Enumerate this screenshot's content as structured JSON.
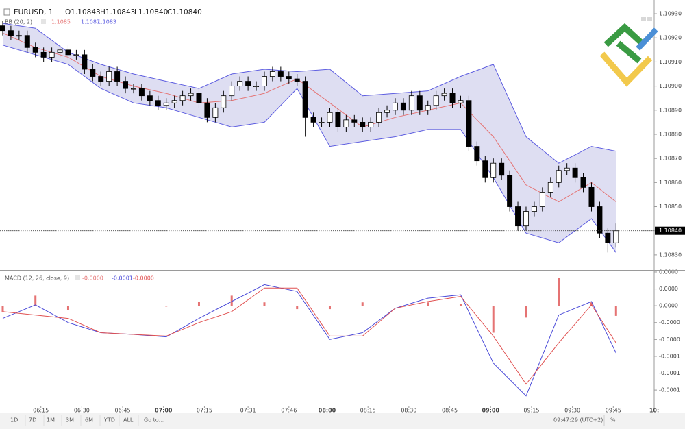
{
  "chart_data": [
    {
      "type": "candlestick",
      "title": "EURUSD, 1",
      "ohlc_labels": [
        "O1.10843",
        "H1.10843",
        "L1.10840",
        "C1.10840"
      ],
      "up_color": "#ffffff",
      "down_color": "#000000",
      "wick_color": "#000000",
      "x": [
        361,
        364,
        367,
        370,
        373,
        376,
        379,
        382,
        385,
        388,
        391,
        394,
        397,
        400,
        403,
        406,
        409,
        412,
        415,
        418,
        421,
        424,
        427,
        430,
        433,
        436,
        439,
        442,
        445,
        448,
        451,
        454,
        457,
        460,
        463,
        466,
        469,
        472,
        475,
        478,
        481,
        484,
        487,
        490,
        493,
        496,
        499,
        502,
        505,
        508,
        511,
        514,
        517,
        520,
        523,
        526,
        529,
        532,
        535,
        538,
        541,
        544,
        547,
        550,
        553,
        556,
        559,
        562,
        565,
        568,
        571,
        574,
        577,
        580,
        583,
        586
      ],
      "ohlc": [
        [
          1.10925,
          1.10927,
          1.10921,
          1.10923
        ],
        [
          1.10923,
          1.10925,
          1.10919,
          1.10921
        ],
        [
          1.10921,
          1.10923,
          1.10919,
          1.10921
        ],
        [
          1.10921,
          1.10923,
          1.10914,
          1.10916
        ],
        [
          1.10916,
          1.10918,
          1.10912,
          1.10914
        ],
        [
          1.10914,
          1.10916,
          1.1091,
          1.10912
        ],
        [
          1.10912,
          1.10916,
          1.1091,
          1.10914
        ],
        [
          1.10914,
          1.10917,
          1.10912,
          1.10915
        ],
        [
          1.10915,
          1.10917,
          1.10911,
          1.10913
        ],
        [
          1.10913,
          1.10915,
          1.10911,
          1.10913
        ],
        [
          1.10913,
          1.10915,
          1.10905,
          1.10907
        ],
        [
          1.10907,
          1.10909,
          1.10902,
          1.10904
        ],
        [
          1.10904,
          1.10906,
          1.109,
          1.10902
        ],
        [
          1.10902,
          1.10908,
          1.109,
          1.10906
        ],
        [
          1.10906,
          1.10908,
          1.109,
          1.10902
        ],
        [
          1.10902,
          1.10904,
          1.10897,
          1.10899
        ],
        [
          1.10899,
          1.10901,
          1.10897,
          1.10899
        ],
        [
          1.10899,
          1.10901,
          1.10894,
          1.10896
        ],
        [
          1.10896,
          1.10898,
          1.10892,
          1.10894
        ],
        [
          1.10894,
          1.10896,
          1.1089,
          1.10892
        ],
        [
          1.10892,
          1.10895,
          1.1089,
          1.10893
        ],
        [
          1.10893,
          1.10896,
          1.10891,
          1.10894
        ],
        [
          1.10894,
          1.10898,
          1.10892,
          1.10896
        ],
        [
          1.10896,
          1.10899,
          1.10894,
          1.10897
        ],
        [
          1.10897,
          1.10899,
          1.10891,
          1.10893
        ],
        [
          1.10893,
          1.10895,
          1.10885,
          1.10887
        ],
        [
          1.10887,
          1.10893,
          1.10885,
          1.10891
        ],
        [
          1.10891,
          1.10898,
          1.10889,
          1.10896
        ],
        [
          1.10896,
          1.10902,
          1.10894,
          1.109
        ],
        [
          1.109,
          1.10904,
          1.10898,
          1.10902
        ],
        [
          1.10902,
          1.10904,
          1.10898,
          1.109
        ],
        [
          1.109,
          1.10902,
          1.10898,
          1.109
        ],
        [
          1.109,
          1.10906,
          1.10898,
          1.10904
        ],
        [
          1.10904,
          1.10908,
          1.10902,
          1.10906
        ],
        [
          1.10906,
          1.10908,
          1.10902,
          1.10904
        ],
        [
          1.10904,
          1.10906,
          1.10901,
          1.10903
        ],
        [
          1.10903,
          1.10905,
          1.109,
          1.10902
        ],
        [
          1.10902,
          1.10904,
          1.10879,
          1.10887
        ],
        [
          1.10887,
          1.10889,
          1.10883,
          1.10885
        ],
        [
          1.10885,
          1.10887,
          1.10883,
          1.10885
        ],
        [
          1.10885,
          1.10891,
          1.10883,
          1.10889
        ],
        [
          1.10889,
          1.10891,
          1.10881,
          1.10883
        ],
        [
          1.10883,
          1.10888,
          1.10881,
          1.10886
        ],
        [
          1.10886,
          1.10888,
          1.10883,
          1.10885
        ],
        [
          1.10885,
          1.10887,
          1.10881,
          1.10883
        ],
        [
          1.10883,
          1.10887,
          1.10881,
          1.10885
        ],
        [
          1.10885,
          1.10891,
          1.10883,
          1.10889
        ],
        [
          1.10889,
          1.10892,
          1.10887,
          1.1089
        ],
        [
          1.1089,
          1.10895,
          1.10888,
          1.10893
        ],
        [
          1.10893,
          1.10895,
          1.10888,
          1.1089
        ],
        [
          1.1089,
          1.10898,
          1.10888,
          1.10896
        ],
        [
          1.10896,
          1.10898,
          1.10888,
          1.1089
        ],
        [
          1.1089,
          1.10894,
          1.10888,
          1.10892
        ],
        [
          1.10892,
          1.10898,
          1.1089,
          1.10896
        ],
        [
          1.10896,
          1.10899,
          1.10894,
          1.10897
        ],
        [
          1.10897,
          1.10899,
          1.10891,
          1.10893
        ],
        [
          1.10893,
          1.10896,
          1.10891,
          1.10894
        ],
        [
          1.10894,
          1.10896,
          1.10873,
          1.10875
        ],
        [
          1.10875,
          1.10877,
          1.10867,
          1.10869
        ],
        [
          1.10869,
          1.10871,
          1.1086,
          1.10862
        ],
        [
          1.10862,
          1.1087,
          1.1086,
          1.10868
        ],
        [
          1.10868,
          1.1087,
          1.10861,
          1.10863
        ],
        [
          1.10863,
          1.10865,
          1.10848,
          1.1085
        ],
        [
          1.1085,
          1.10852,
          1.1084,
          1.10842
        ],
        [
          1.10842,
          1.1085,
          1.1084,
          1.10848
        ],
        [
          1.10848,
          1.10852,
          1.10846,
          1.1085
        ],
        [
          1.1085,
          1.10858,
          1.10848,
          1.10856
        ],
        [
          1.10856,
          1.10862,
          1.10854,
          1.1086
        ],
        [
          1.1086,
          1.10867,
          1.10858,
          1.10865
        ],
        [
          1.10865,
          1.10868,
          1.10863,
          1.10866
        ],
        [
          1.10866,
          1.10868,
          1.1086,
          1.10862
        ],
        [
          1.10862,
          1.10864,
          1.10856,
          1.10858
        ],
        [
          1.10858,
          1.1086,
          1.10848,
          1.1085
        ],
        [
          1.1085,
          1.10852,
          1.10837,
          1.10839
        ],
        [
          1.10839,
          1.10841,
          1.10831,
          1.10835
        ],
        [
          1.10835,
          1.10843,
          1.10833,
          1.1084
        ]
      ],
      "xlim": [
        360,
        600
      ],
      "xticks": [
        {
          "value": 375,
          "label": "06:15"
        },
        {
          "value": 390,
          "label": "06:30"
        },
        {
          "value": 405,
          "label": "06:45"
        },
        {
          "value": 420,
          "label": "07:00"
        },
        {
          "value": 435,
          "label": "07:15"
        },
        {
          "value": 451,
          "label": "07:31"
        },
        {
          "value": 466,
          "label": "07:46"
        },
        {
          "value": 480,
          "label": "08:00"
        },
        {
          "value": 495,
          "label": "08:15"
        },
        {
          "value": 510,
          "label": "08:30"
        },
        {
          "value": 525,
          "label": "08:45"
        },
        {
          "value": 540,
          "label": "09:00"
        },
        {
          "value": 555,
          "label": "09:15"
        },
        {
          "value": 570,
          "label": "09:30"
        },
        {
          "value": 585,
          "label": "09:45"
        },
        {
          "value": 600,
          "label": "10:"
        }
      ],
      "ylim": [
        1.10824,
        1.109357
      ],
      "yticks": [
        {
          "value": 1.1093,
          "label": "1.10930"
        },
        {
          "value": 1.1092,
          "label": "1.10920"
        },
        {
          "value": 1.1091,
          "label": "1.10910"
        },
        {
          "value": 1.109,
          "label": "1.10900"
        },
        {
          "value": 1.1089,
          "label": "1.10890"
        },
        {
          "value": 1.1088,
          "label": "1.10880"
        },
        {
          "value": 1.1087,
          "label": "1.10870"
        },
        {
          "value": 1.1086,
          "label": "1.10860"
        },
        {
          "value": 1.1085,
          "label": "1.10850"
        },
        {
          "value": 1.1084,
          "label": "1.10840"
        },
        {
          "value": 1.1083,
          "label": "1.10830"
        }
      ],
      "last_price": {
        "value": 1.1084,
        "label": "1.10840"
      },
      "bollinger": {
        "name": "BB (20, 2)",
        "fill": "#dedef2",
        "x": [
          361,
          373,
          385,
          397,
          409,
          421,
          433,
          445,
          457,
          469,
          481,
          493,
          505,
          517,
          529,
          541,
          553,
          565,
          577,
          586
        ],
        "basis": {
          "label": "1.1085",
          "color": "#e57373",
          "values": [
            1.10922,
            1.10916,
            1.10912,
            1.10904,
            1.109,
            1.10897,
            1.10893,
            1.10894,
            1.10897,
            1.10903,
            1.10893,
            1.10883,
            1.10887,
            1.1089,
            1.10893,
            1.10879,
            1.10859,
            1.10852,
            1.1086,
            1.10852
          ]
        },
        "upper": {
          "label": "1.1087",
          "color": "#5c5ce0",
          "values": [
            1.10926,
            1.10924,
            1.10914,
            1.10909,
            1.10905,
            1.10902,
            1.10899,
            1.10905,
            1.10907,
            1.10906,
            1.10907,
            1.10896,
            1.10897,
            1.10898,
            1.10904,
            1.10909,
            1.10879,
            1.10868,
            1.10875,
            1.10873
          ]
        },
        "lower": {
          "label": "1.1083",
          "color": "#5c5ce0",
          "values": [
            1.10917,
            1.10913,
            1.10909,
            1.10899,
            1.10893,
            1.10891,
            1.10887,
            1.10883,
            1.10885,
            1.10899,
            1.10875,
            1.10877,
            1.10879,
            1.10882,
            1.10882,
            1.10862,
            1.10839,
            1.10835,
            1.10845,
            1.10831
          ]
        }
      }
    },
    {
      "type": "macd",
      "title": "MACD (12, 26, close, 9)",
      "x": [
        361,
        373,
        385,
        397,
        409,
        421,
        433,
        445,
        457,
        469,
        481,
        493,
        505,
        517,
        529,
        541,
        553,
        565,
        577,
        586
      ],
      "ylim": [
        -0.000117,
        4.08e-05
      ],
      "yticks": [
        {
          "value": 4e-05,
          "label": "0.0000"
        },
        {
          "value": 2e-05,
          "label": "0.0000"
        },
        {
          "value": 0,
          "label": "0.0000"
        },
        {
          "value": -2e-05,
          "label": "-0.0000"
        },
        {
          "value": -4e-05,
          "label": "-0.0000"
        },
        {
          "value": -6e-05,
          "label": "-0.0001"
        },
        {
          "value": -8e-05,
          "label": "-0.0001"
        },
        {
          "value": -0.0001,
          "label": "-0.0001"
        }
      ],
      "series": [
        {
          "label": "-0.0000",
          "color": "#e57373",
          "kind": "histogram",
          "values": [
            -8e-06,
            1.2e-05,
            -5e-06,
            0,
            0,
            -1e-06,
            5e-06,
            1.2e-05,
            4e-06,
            -4e-06,
            -4e-06,
            4e-06,
            0,
            4e-06,
            2e-06,
            -3.2e-05,
            -1.4e-05,
            3.3e-05,
            4e-06,
            -1.2e-05
          ]
        },
        {
          "label": "-0.0001",
          "color": "#4a4ad8",
          "kind": "line",
          "values": [
            -1.5e-05,
            1e-06,
            -2e-05,
            -3.2e-05,
            -3.4e-05,
            -3.7e-05,
            -1.5e-05,
            5e-06,
            2.5e-05,
            1.7e-05,
            -4e-05,
            -3.2e-05,
            -3e-06,
            9e-06,
            1.3e-05,
            -6.8e-05,
            -0.000107,
            -1.1e-05,
            5e-06,
            -5.6e-05
          ]
        },
        {
          "label": "-0.0000",
          "color": "#e05050",
          "kind": "line",
          "values": [
            -7e-06,
            -1.1e-05,
            -1.5e-05,
            -3.2e-05,
            -3.4e-05,
            -3.6e-05,
            -2e-05,
            -7e-06,
            2.1e-05,
            2.1e-05,
            -3.6e-05,
            -3.6e-05,
            -3e-06,
            5e-06,
            1.1e-05,
            -3.6e-05,
            -9.3e-05,
            -4.4e-05,
            1e-06,
            -4.4e-05
          ]
        }
      ]
    }
  ],
  "toolbar": {
    "ranges": [
      "1D",
      "7D",
      "1M",
      "3M",
      "6M",
      "YTD",
      "ALL"
    ],
    "goto": "Go to...",
    "clock": "09:47:29 (UTC+2)",
    "percent": "%"
  }
}
